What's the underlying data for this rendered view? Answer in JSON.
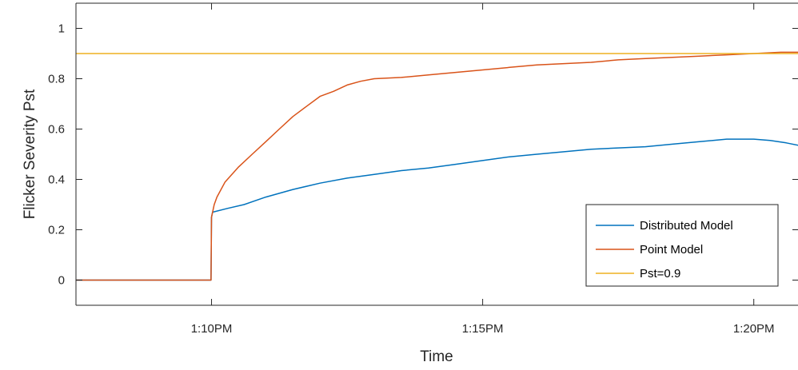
{
  "chart_data": {
    "type": "line",
    "title": "",
    "xlabel": "Time",
    "ylabel": "Flicker Severity Pst",
    "xlim": [
      "1:07:30PM",
      "1:20:50PM"
    ],
    "ylim": [
      -0.1,
      1.1
    ],
    "x_ticks": [
      {
        "label": "1:10PM",
        "minute": 10
      },
      {
        "label": "1:15PM",
        "minute": 15
      },
      {
        "label": "1:20PM",
        "minute": 20
      }
    ],
    "y_ticks": [
      {
        "label": "0",
        "value": 0
      },
      {
        "label": "0.2",
        "value": 0.2
      },
      {
        "label": "0.4",
        "value": 0.4
      },
      {
        "label": "0.6",
        "value": 0.6
      },
      {
        "label": "0.8",
        "value": 0.8
      },
      {
        "label": "1",
        "value": 1
      }
    ],
    "x_minute_range": [
      7.5,
      20.83
    ],
    "grid": false,
    "legend_position": "bottom-right",
    "series": [
      {
        "name": "Distributed Model",
        "color": "#0072BD",
        "x_minutes": [
          7.5,
          9.99,
          10.0,
          10.02,
          10.3,
          10.6,
          11.0,
          11.5,
          12.0,
          12.5,
          13.0,
          13.5,
          14.0,
          14.5,
          15.0,
          15.5,
          16.0,
          16.5,
          17.0,
          17.5,
          18.0,
          18.5,
          19.0,
          19.5,
          19.8,
          20.0,
          20.3,
          20.6,
          20.83
        ],
        "y": [
          0,
          0,
          0.25,
          0.27,
          0.285,
          0.3,
          0.33,
          0.36,
          0.385,
          0.405,
          0.42,
          0.435,
          0.445,
          0.46,
          0.475,
          0.49,
          0.5,
          0.51,
          0.52,
          0.525,
          0.53,
          0.54,
          0.55,
          0.56,
          0.56,
          0.56,
          0.555,
          0.545,
          0.535
        ]
      },
      {
        "name": "Point Model",
        "color": "#D95319",
        "x_minutes": [
          7.5,
          9.99,
          10.0,
          10.05,
          10.1,
          10.25,
          10.5,
          10.75,
          11.0,
          11.25,
          11.5,
          11.75,
          12.0,
          12.25,
          12.5,
          12.75,
          13.0,
          13.5,
          14.0,
          14.5,
          15.0,
          15.5,
          16.0,
          16.5,
          17.0,
          17.5,
          18.0,
          18.5,
          19.0,
          19.5,
          20.0,
          20.5,
          20.83
        ],
        "y": [
          0,
          0,
          0.25,
          0.3,
          0.33,
          0.39,
          0.45,
          0.5,
          0.55,
          0.6,
          0.65,
          0.69,
          0.73,
          0.75,
          0.775,
          0.79,
          0.8,
          0.805,
          0.815,
          0.825,
          0.835,
          0.845,
          0.855,
          0.86,
          0.865,
          0.875,
          0.88,
          0.885,
          0.89,
          0.895,
          0.9,
          0.905,
          0.905
        ]
      },
      {
        "name": "Pst=0.9",
        "color": "#EDB120",
        "x_minutes": [
          7.5,
          20.83
        ],
        "y": [
          0.9,
          0.9
        ]
      }
    ]
  }
}
